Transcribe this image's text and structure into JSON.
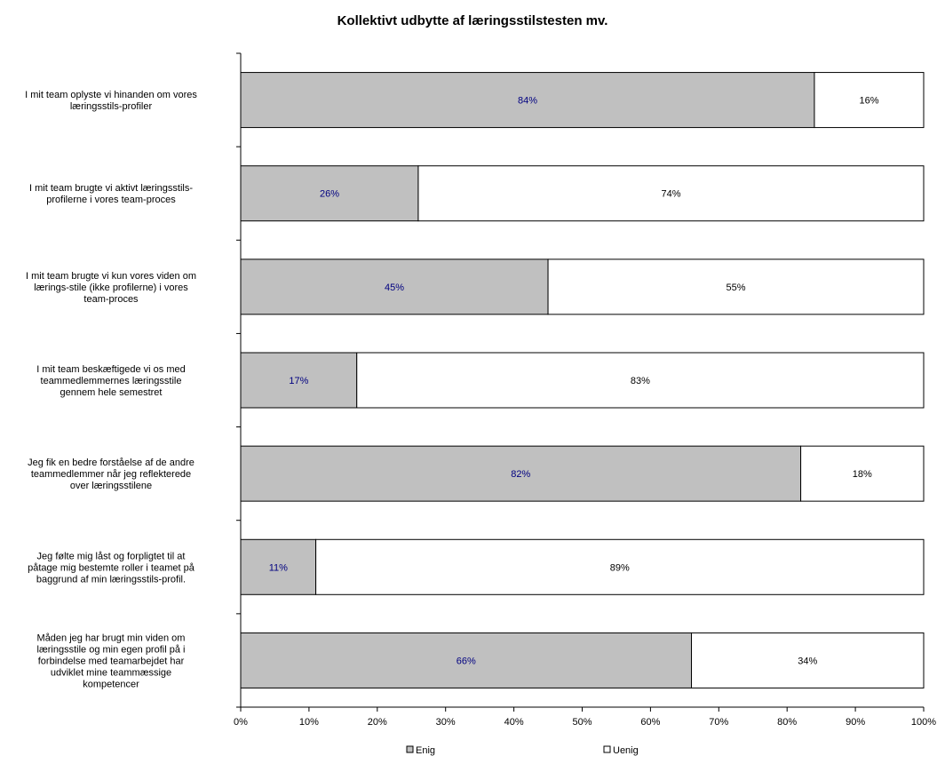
{
  "chart_data": {
    "type": "bar",
    "orientation": "horizontal",
    "stacked": "percent",
    "title": "Kollektivt udbytte af læringsstilstesten mv.",
    "categories": [
      [
        "I mit team oplyste vi hinanden om vores",
        "læringsstils-profiler"
      ],
      [
        "I mit team brugte vi aktivt læringsstils-",
        "profilerne i vores team-proces"
      ],
      [
        "I mit team brugte vi kun vores viden om",
        "lærings-stile (ikke profilerne) i vores",
        "team-proces"
      ],
      [
        "I mit team beskæftigede vi os med",
        "teammedlemmernes læringsstile",
        "gennem hele semestret"
      ],
      [
        "Jeg fik en bedre forståelse af de andre",
        "teammedlemmer når jeg reflekterede",
        "over læringsstilene"
      ],
      [
        "Jeg følte mig låst og forpligtet til at",
        "påtage mig bestemte roller i teamet på",
        "baggrund af min læringsstils-profil."
      ],
      [
        "Måden jeg har brugt min viden om",
        "læringsstile og min egen profil på i",
        "forbindelse med teamarbejdet har",
        "udviklet mine teammæssige",
        "kompetencer"
      ]
    ],
    "series": [
      {
        "name": "Enig",
        "color": "#c0c0c0",
        "label_color": "#000080",
        "values": [
          84,
          26,
          45,
          17,
          82,
          11,
          66
        ],
        "labels": [
          "84%",
          "26%",
          "45%",
          "17%",
          "82%",
          "11%",
          "66%"
        ]
      },
      {
        "name": "Uenig",
        "color": "#ffffff",
        "label_color": "#000000",
        "values": [
          16,
          74,
          55,
          83,
          18,
          89,
          34
        ],
        "labels": [
          "16%",
          "74%",
          "55%",
          "83%",
          "18%",
          "89%",
          "34%"
        ]
      }
    ],
    "xlim": [
      0,
      100
    ],
    "xticks": [
      "0%",
      "10%",
      "20%",
      "30%",
      "40%",
      "50%",
      "60%",
      "70%",
      "80%",
      "90%",
      "100%"
    ],
    "grid": false,
    "legend_position": "bottom"
  }
}
